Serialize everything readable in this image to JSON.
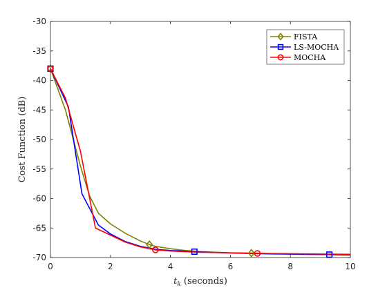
{
  "chart_data": {
    "type": "line",
    "title": "",
    "xlabel_var": "t",
    "xlabel_sub": "k",
    "xlabel_rest": " (seconds)",
    "ylabel": "Cost Function (dB)",
    "xlim": [
      0,
      10
    ],
    "ylim": [
      -70,
      -30
    ],
    "xticks": [
      "0",
      "2",
      "4",
      "6",
      "8",
      "10"
    ],
    "yticks": [
      "-30",
      "-35",
      "-40",
      "-45",
      "-50",
      "-55",
      "-60",
      "-65",
      "-70"
    ],
    "grid": false,
    "legend_position": "top-right",
    "series": [
      {
        "name": "FISTA",
        "color": "#808000",
        "marker": "diamond",
        "x": [
          0,
          0.5,
          1.0,
          1.3,
          1.6,
          2.0,
          2.5,
          3.0,
          3.3,
          3.5,
          4.0,
          4.5,
          5.0,
          5.5,
          6.0,
          6.7,
          7.5,
          8.5,
          10
        ],
        "y": [
          -38,
          -45,
          -54.5,
          -59.5,
          -62.5,
          -64.3,
          -65.9,
          -67.2,
          -67.8,
          -68.1,
          -68.5,
          -68.8,
          -69.0,
          -69.1,
          -69.2,
          -69.25,
          -69.35,
          -69.45,
          -69.55
        ],
        "marker_x": [
          0,
          3.3,
          6.7
        ],
        "marker_y": [
          -38,
          -67.8,
          -69.25
        ]
      },
      {
        "name": "LS-MOCHA",
        "color": "#0000ff",
        "marker": "square",
        "x": [
          0,
          0.6,
          1.05,
          1.6,
          2.0,
          2.5,
          3.0,
          3.5,
          4.0,
          4.8,
          5.5,
          6.5,
          7.5,
          8.5,
          9.3,
          10
        ],
        "y": [
          -38,
          -44.5,
          -59.2,
          -64.5,
          -66.0,
          -67.3,
          -68.1,
          -68.6,
          -68.8,
          -69.0,
          -69.15,
          -69.3,
          -69.4,
          -69.45,
          -69.5,
          -69.55
        ],
        "marker_x": [
          0,
          4.8,
          9.3
        ],
        "marker_y": [
          -38,
          -69.0,
          -69.5
        ]
      },
      {
        "name": "MOCHA",
        "color": "#ff0000",
        "marker": "circle",
        "x": [
          0,
          0.5,
          1.0,
          1.5,
          2.0,
          2.5,
          3.0,
          3.5,
          4.0,
          5.0,
          6.0,
          6.9,
          8.0,
          9.0,
          10
        ],
        "y": [
          -38,
          -43,
          -52,
          -65.0,
          -66.2,
          -67.4,
          -68.2,
          -68.7,
          -68.9,
          -69.1,
          -69.2,
          -69.3,
          -69.35,
          -69.4,
          -69.45
        ],
        "marker_x": [
          0,
          3.5,
          6.9
        ],
        "marker_y": [
          -38,
          -68.7,
          -69.3
        ]
      }
    ]
  }
}
